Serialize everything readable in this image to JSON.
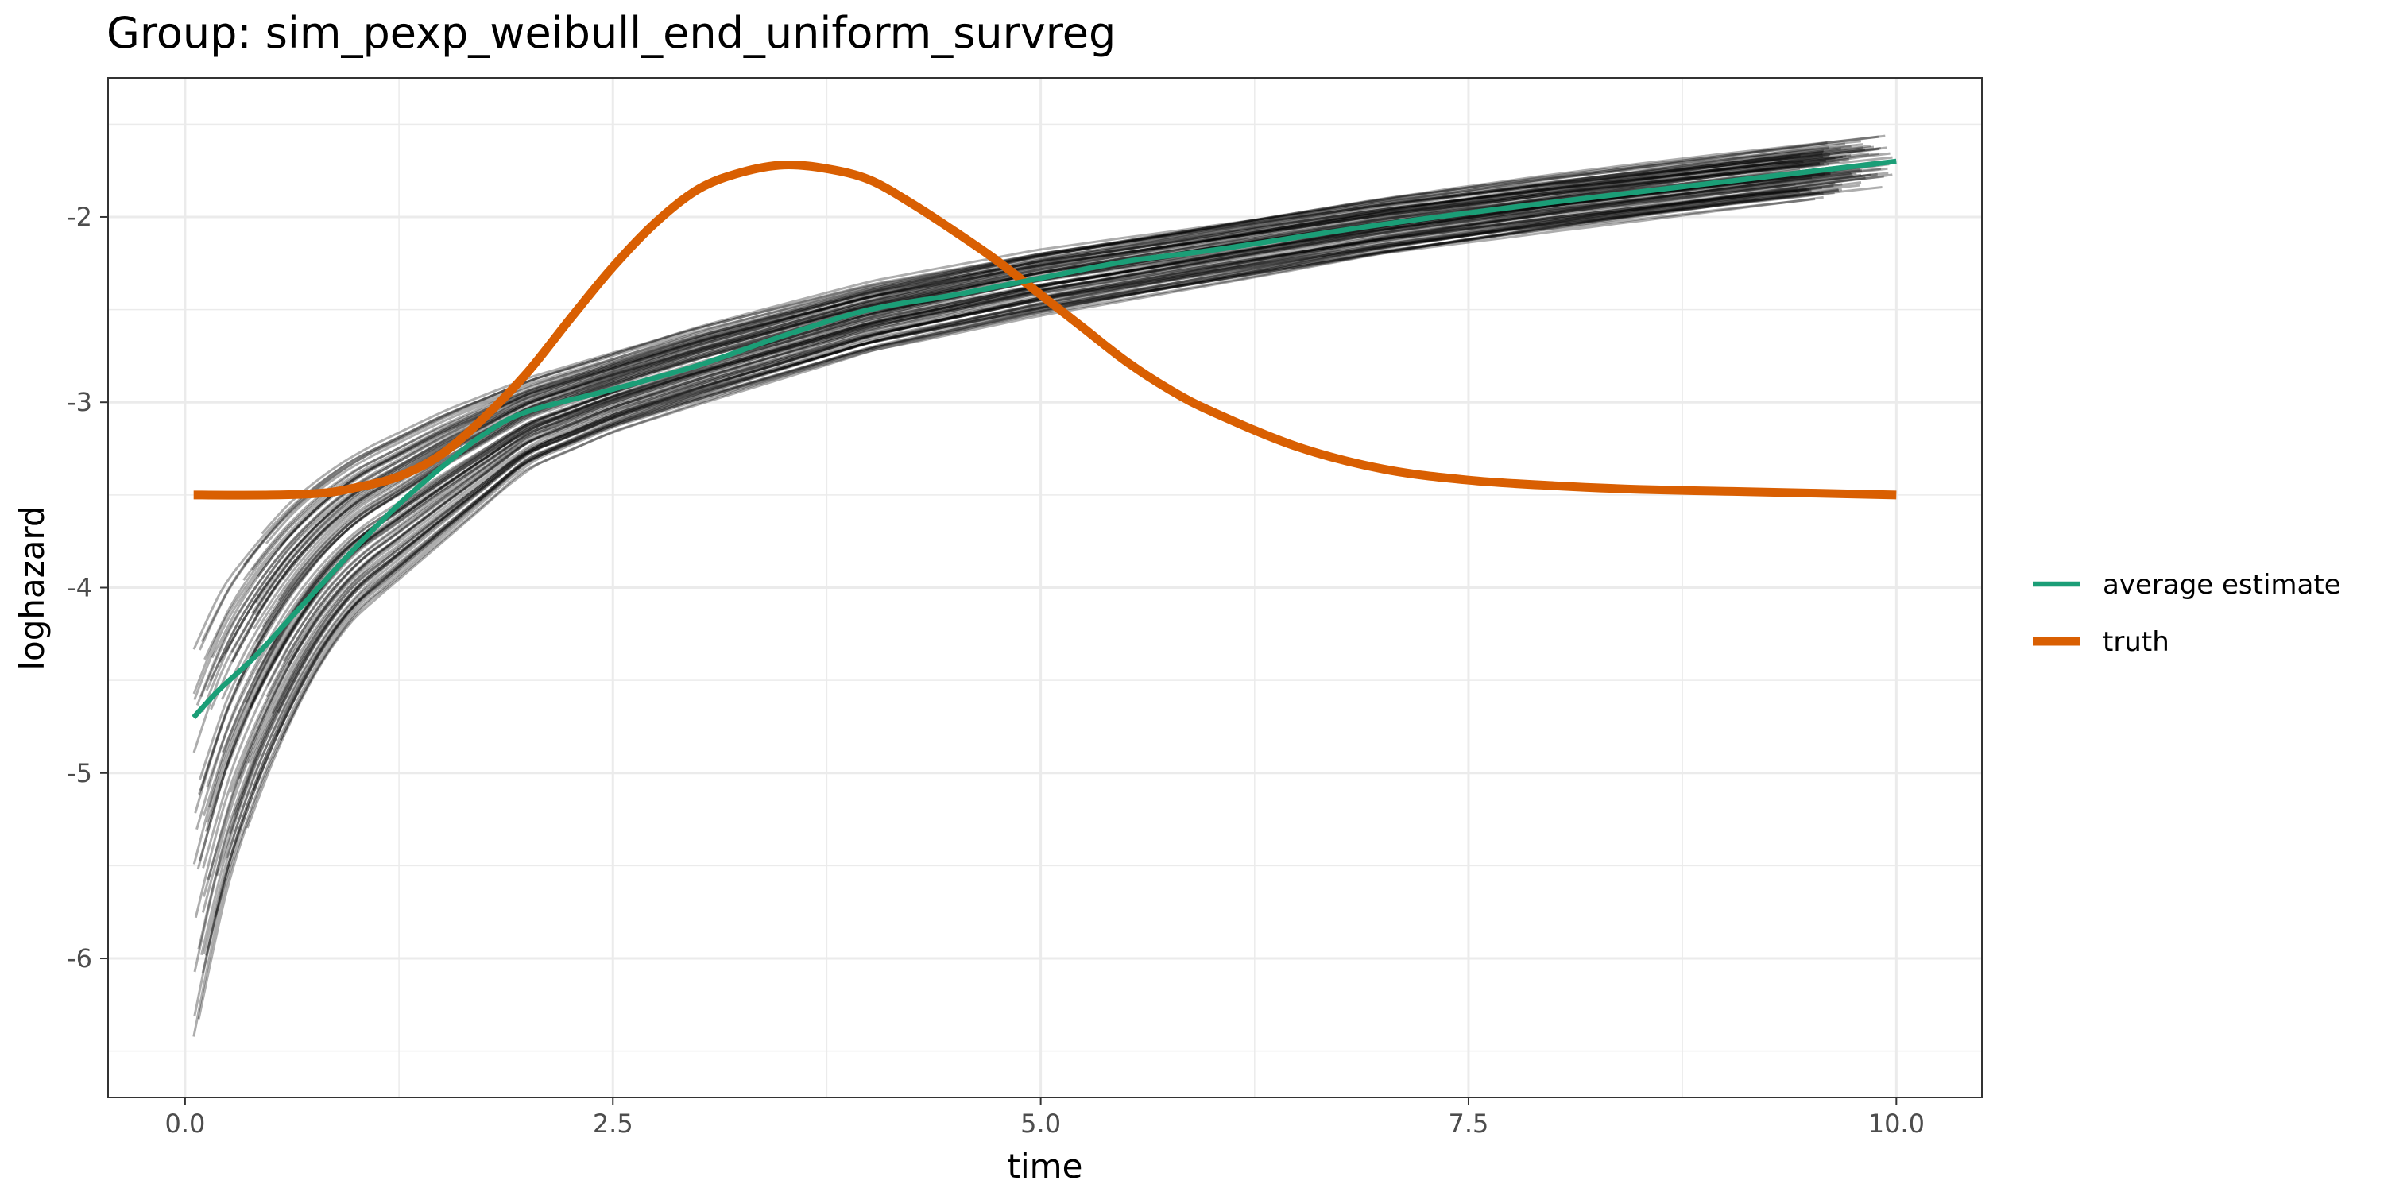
{
  "chart_data": {
    "type": "line",
    "title": "Group: sim_pexp_weibull_end_uniform_survreg",
    "xlabel": "time",
    "ylabel": "loghazard",
    "xlim": [
      -0.45,
      10.5
    ],
    "ylim": [
      -6.75,
      -1.25
    ],
    "x_ticks": [
      0.0,
      2.5,
      5.0,
      7.5,
      10.0
    ],
    "x_tick_labels": [
      "0.0",
      "2.5",
      "5.0",
      "7.5",
      "10.0"
    ],
    "y_ticks": [
      -6,
      -5,
      -4,
      -3,
      -2
    ],
    "y_tick_labels": [
      "-6",
      "-5",
      "-4",
      "-3",
      "-2"
    ],
    "grid": true,
    "legend_position": "right",
    "series": [
      {
        "name": "average estimate",
        "color": "#1b9e77",
        "x": [
          0.05,
          0.2,
          0.4,
          0.6,
          0.8,
          1.0,
          1.25,
          1.5,
          1.75,
          2.0,
          2.5,
          3.0,
          3.5,
          4.0,
          4.5,
          5.0,
          5.5,
          6.0,
          7.0,
          8.0,
          9.0,
          10.0
        ],
        "y": [
          -4.7,
          -4.55,
          -4.38,
          -4.18,
          -3.98,
          -3.78,
          -3.55,
          -3.35,
          -3.17,
          -3.05,
          -2.93,
          -2.8,
          -2.64,
          -2.5,
          -2.42,
          -2.33,
          -2.24,
          -2.18,
          -2.04,
          -1.92,
          -1.81,
          -1.7
        ]
      },
      {
        "name": "truth",
        "color": "#d95f02",
        "x": [
          0.05,
          0.5,
          0.8,
          1.0,
          1.25,
          1.5,
          1.75,
          2.0,
          2.25,
          2.5,
          2.75,
          3.0,
          3.25,
          3.5,
          3.75,
          4.0,
          4.25,
          4.5,
          4.75,
          5.0,
          5.25,
          5.5,
          5.75,
          6.0,
          6.5,
          7.0,
          7.5,
          8.0,
          8.5,
          9.0,
          9.5,
          10.0
        ],
        "y": [
          -3.5,
          -3.5,
          -3.49,
          -3.46,
          -3.4,
          -3.28,
          -3.08,
          -2.84,
          -2.55,
          -2.27,
          -2.03,
          -1.85,
          -1.76,
          -1.72,
          -1.74,
          -1.8,
          -1.93,
          -2.08,
          -2.24,
          -2.42,
          -2.6,
          -2.78,
          -2.93,
          -3.05,
          -3.24,
          -3.36,
          -3.42,
          -3.45,
          -3.47,
          -3.48,
          -3.49,
          -3.5
        ]
      }
    ],
    "simulation_band": {
      "color": "#000000",
      "x": [
        0.05,
        0.2,
        0.4,
        0.6,
        0.8,
        1.0,
        1.5,
        2.0,
        2.5,
        3.0,
        4.0,
        5.0,
        6.0,
        7.0,
        8.0,
        9.0,
        10.0
      ],
      "upper": [
        -4.3,
        -4.0,
        -3.75,
        -3.55,
        -3.4,
        -3.28,
        -3.06,
        -2.88,
        -2.74,
        -2.6,
        -2.36,
        -2.18,
        -2.04,
        -1.9,
        -1.78,
        -1.67,
        -1.56
      ],
      "lower": [
        -6.5,
        -5.8,
        -5.2,
        -4.75,
        -4.4,
        -4.15,
        -3.75,
        -3.35,
        -3.15,
        -3.0,
        -2.72,
        -2.52,
        -2.36,
        -2.2,
        -2.07,
        -1.95,
        -1.84
      ]
    }
  }
}
